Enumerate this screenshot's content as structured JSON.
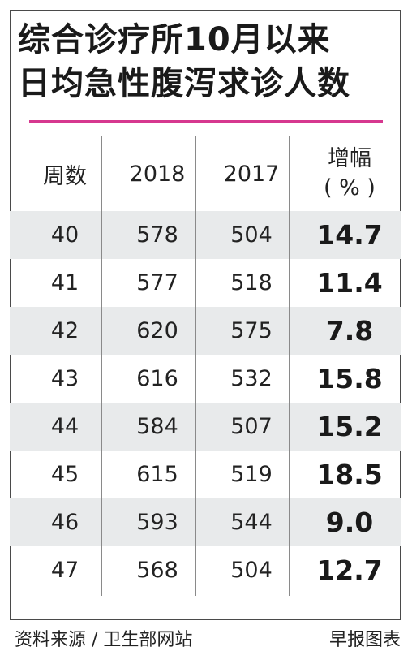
{
  "title_line1": "综合诊疗所10月以来",
  "title_line2": "日均急性腹泻求诊人数",
  "accent_color": "#d6388f",
  "headers": {
    "week": "周数",
    "y2018": "2018",
    "y2017": "2017",
    "change_line1": "增幅",
    "change_line2": "( % )"
  },
  "chart_data": {
    "type": "table",
    "title": "综合诊疗所10月以来日均急性腹泻求诊人数",
    "columns": [
      "周数",
      "2018",
      "2017",
      "增幅( % )"
    ],
    "rows": [
      {
        "week": "40",
        "y2018": "578",
        "y2017": "504",
        "change": "14.7"
      },
      {
        "week": "41",
        "y2018": "577",
        "y2017": "518",
        "change": "11.4"
      },
      {
        "week": "42",
        "y2018": "620",
        "y2017": "575",
        "change": "7.8"
      },
      {
        "week": "43",
        "y2018": "616",
        "y2017": "532",
        "change": "15.8"
      },
      {
        "week": "44",
        "y2018": "584",
        "y2017": "507",
        "change": "15.2"
      },
      {
        "week": "45",
        "y2018": "615",
        "y2017": "519",
        "change": "18.5"
      },
      {
        "week": "46",
        "y2018": "593",
        "y2017": "544",
        "change": "9.0"
      },
      {
        "week": "47",
        "y2018": "568",
        "y2017": "504",
        "change": "12.7"
      }
    ]
  },
  "footer": {
    "source": "资料来源 / 卫生部网站",
    "credit": "早报图表"
  }
}
